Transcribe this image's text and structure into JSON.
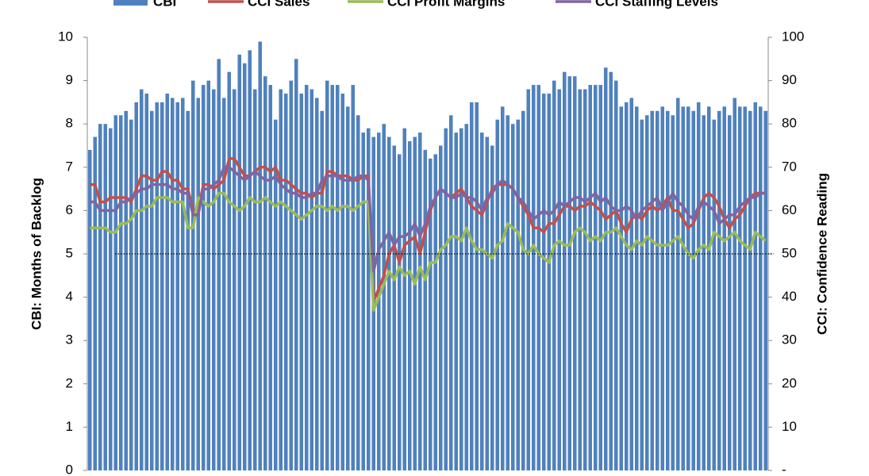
{
  "chart_data": {
    "type": "bar_line",
    "ylabel": "CBI: Months of Backlog",
    "y2label": "CCI: Confidence Reading",
    "ylim": [
      0,
      10
    ],
    "yticks": [
      0,
      1,
      2,
      3,
      4,
      5,
      6,
      7,
      8,
      9,
      10
    ],
    "y2lim": [
      0,
      100
    ],
    "y2ticks": [
      {
        "value": 0,
        "label": "-"
      },
      10,
      20,
      30,
      40,
      50,
      60,
      70,
      80,
      90,
      100
    ],
    "y2_reference_line": 50,
    "series": [
      {
        "name": "CBI",
        "type": "bar",
        "color": "#4f81bd",
        "values": [
          7.4,
          7.7,
          8.0,
          8.0,
          7.9,
          8.2,
          8.2,
          8.3,
          8.1,
          8.5,
          8.8,
          8.7,
          8.3,
          8.5,
          8.5,
          8.7,
          8.6,
          8.5,
          8.6,
          8.3,
          9.0,
          8.6,
          8.9,
          9.0,
          8.8,
          9.5,
          8.6,
          9.2,
          8.8,
          9.6,
          9.4,
          9.7,
          8.8,
          9.9,
          9.1,
          8.9,
          8.1,
          8.8,
          8.7,
          9.0,
          9.5,
          8.7,
          8.9,
          8.8,
          8.6,
          8.3,
          9.0,
          8.9,
          8.9,
          8.7,
          8.4,
          8.9,
          8.2,
          7.8,
          7.9,
          7.7,
          7.8,
          8.0,
          7.7,
          7.5,
          7.3,
          7.9,
          7.6,
          7.7,
          7.8,
          7.4,
          7.2,
          7.3,
          7.5,
          7.9,
          8.2,
          7.8,
          7.9,
          8.0,
          8.5,
          8.5,
          7.8,
          7.7,
          7.5,
          8.1,
          8.4,
          8.2,
          8.0,
          8.1,
          8.3,
          8.8,
          8.9,
          8.9,
          8.7,
          8.7,
          9.0,
          8.8,
          9.2,
          9.1,
          9.1,
          8.8,
          8.8,
          8.9,
          8.9,
          8.9,
          9.3,
          9.2,
          9.0,
          8.4,
          8.5,
          8.6,
          8.4,
          8.1,
          8.2,
          8.3,
          8.3,
          8.4,
          8.3,
          8.2,
          8.6,
          8.4,
          8.4,
          8.3,
          8.5,
          8.2,
          8.4,
          8.1,
          8.3,
          8.4,
          8.2,
          8.6,
          8.4,
          8.4,
          8.3,
          8.5,
          8.4,
          8.3
        ]
      },
      {
        "name": "CCI Sales",
        "type": "line",
        "axis": "y2",
        "color": "#c0504d",
        "values": [
          66,
          66,
          62,
          62,
          63,
          63,
          63,
          63,
          62,
          65,
          68,
          68,
          67,
          67,
          69,
          69,
          67,
          67,
          65,
          65,
          60,
          60,
          66,
          66,
          65,
          66,
          67,
          72,
          72,
          70,
          68,
          68,
          69,
          70,
          70,
          69,
          70,
          67,
          67,
          66,
          65,
          64,
          64,
          63,
          64,
          64,
          69,
          69,
          68,
          68,
          68,
          67,
          67,
          68,
          68,
          39,
          42,
          45,
          50,
          52,
          48,
          52,
          53,
          54,
          50,
          55,
          60,
          63,
          65,
          64,
          63,
          64,
          65,
          63,
          61,
          60,
          59,
          62,
          65,
          66,
          66,
          66,
          65,
          63,
          61,
          59,
          56,
          56,
          55,
          57,
          57,
          59,
          61,
          61,
          60,
          61,
          61,
          62,
          61,
          60,
          58,
          59,
          60,
          57,
          55,
          58,
          59,
          58,
          60,
          61,
          60,
          61,
          63,
          60,
          60,
          58,
          56,
          57,
          60,
          63,
          64,
          63,
          61,
          58,
          56,
          58,
          59,
          61,
          63,
          64,
          64,
          64
        ]
      },
      {
        "name": "CCI Profit Margins",
        "type": "line",
        "axis": "y2",
        "color": "#9bbb59",
        "values": [
          56,
          56,
          56,
          56,
          55,
          55,
          57,
          57,
          58,
          60,
          60,
          61,
          61,
          63,
          63,
          63,
          62,
          62,
          62,
          56,
          56,
          63,
          62,
          61,
          62,
          64,
          64,
          62,
          61,
          60,
          61,
          63,
          62,
          62,
          63,
          62,
          61,
          62,
          61,
          60,
          59,
          58,
          59,
          60,
          61,
          61,
          60,
          61,
          60,
          61,
          61,
          60,
          61,
          62,
          62,
          37,
          40,
          43,
          46,
          44,
          47,
          45,
          46,
          43,
          47,
          44,
          48,
          48,
          51,
          52,
          54,
          54,
          53,
          56,
          53,
          51,
          51,
          50,
          49,
          52,
          53,
          57,
          56,
          55,
          51,
          50,
          52,
          50,
          49,
          48,
          52,
          53,
          52,
          52,
          55,
          56,
          55,
          53,
          54,
          53,
          55,
          55,
          56,
          54,
          52,
          51,
          53,
          52,
          54,
          53,
          52,
          52,
          52,
          53,
          54,
          52,
          50,
          49,
          51,
          52,
          51,
          55,
          54,
          53,
          54,
          55,
          53,
          52,
          51,
          55,
          54,
          53
        ]
      },
      {
        "name": "CCI Staffing Levels",
        "type": "line",
        "axis": "y2",
        "color": "#8064a2",
        "values": [
          62,
          62,
          60,
          60,
          60,
          60,
          62,
          62,
          63,
          64,
          65,
          65,
          66,
          66,
          66,
          66,
          65,
          65,
          64,
          64,
          59,
          59,
          65,
          65,
          66,
          67,
          70,
          70,
          69,
          68,
          67,
          68,
          69,
          68,
          67,
          67,
          68,
          66,
          65,
          64,
          64,
          63,
          63,
          64,
          64,
          67,
          68,
          68,
          68,
          67,
          67,
          67,
          68,
          68,
          67,
          46,
          51,
          53,
          55,
          52,
          54,
          54,
          55,
          57,
          54,
          57,
          61,
          63,
          65,
          64,
          63,
          63,
          64,
          63,
          63,
          62,
          60,
          63,
          64,
          66,
          67,
          66,
          65,
          63,
          62,
          60,
          58,
          59,
          60,
          59,
          60,
          62,
          61,
          62,
          63,
          63,
          62,
          63,
          64,
          62,
          63,
          61,
          60,
          60,
          61,
          60,
          58,
          60,
          61,
          62,
          63,
          60,
          62,
          64,
          62,
          61,
          59,
          58,
          61,
          62,
          61,
          60,
          57,
          58,
          59,
          59,
          61,
          62,
          63,
          63,
          64,
          64
        ]
      }
    ]
  }
}
